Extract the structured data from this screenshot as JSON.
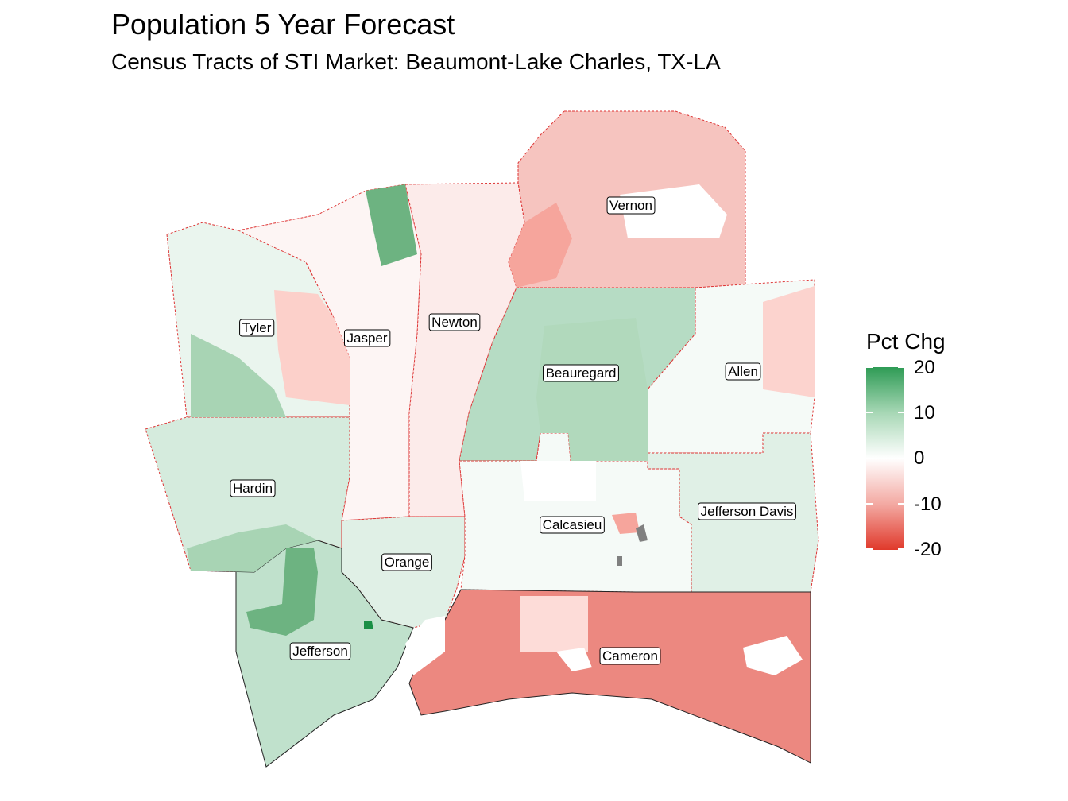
{
  "title": "Population 5 Year Forecast",
  "subtitle": "Census Tracts of STI Market: Beaumont-Lake Charles, TX-LA",
  "legend": {
    "title": "Pct Chg",
    "ticks": [
      "20",
      "10",
      "0",
      "-10",
      "-20"
    ],
    "range": [
      -20,
      20
    ],
    "colors": {
      "high": "#2e9b55",
      "mid": "#ffffff",
      "low": "#e0392b",
      "na": "#808080"
    }
  },
  "counties": [
    {
      "name": "Tyler",
      "pct": 2
    },
    {
      "name": "Jasper",
      "pct": -1
    },
    {
      "name": "Newton",
      "pct": -2
    },
    {
      "name": "Vernon",
      "pct": -6
    },
    {
      "name": "Beauregard",
      "pct": 7
    },
    {
      "name": "Allen",
      "pct": 1
    },
    {
      "name": "Hardin",
      "pct": 4
    },
    {
      "name": "Orange",
      "pct": 3
    },
    {
      "name": "Calcasieu",
      "pct": 1
    },
    {
      "name": "Jefferson Davis",
      "pct": 3
    },
    {
      "name": "Jefferson",
      "pct": 6
    },
    {
      "name": "Cameron",
      "pct": -12
    }
  ]
}
